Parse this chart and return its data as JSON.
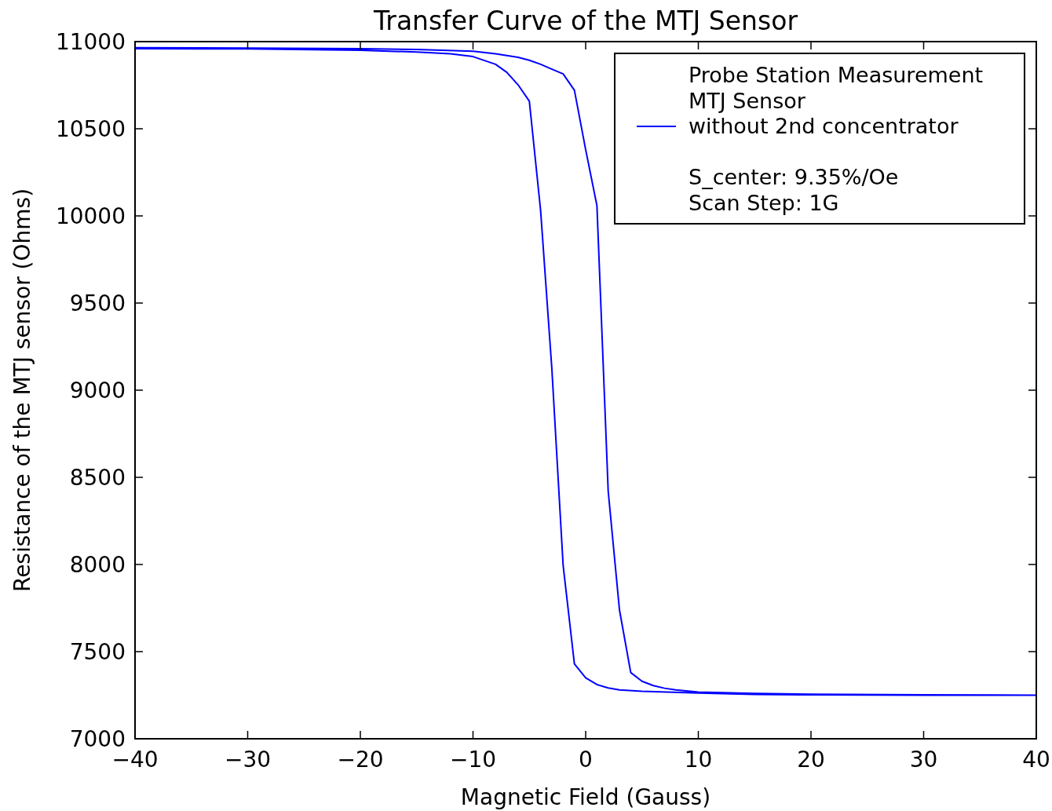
{
  "chart_data": {
    "type": "line",
    "title": "Transfer Curve of the MTJ Sensor",
    "xlabel": "Magnetic Field (Gauss)",
    "ylabel": "Resistance of the MTJ sensor (Ohms)",
    "xlim": [
      -40,
      40
    ],
    "xticks": [
      {
        "value": -40,
        "label": "−40"
      },
      {
        "value": -30,
        "label": "−30"
      },
      {
        "value": -20,
        "label": "−20"
      },
      {
        "value": -10,
        "label": "−10"
      },
      0,
      10,
      20,
      30,
      40
    ],
    "ylim": [
      7000,
      11000
    ],
    "yticks": [
      7000,
      7500,
      8000,
      8500,
      9000,
      9500,
      10000,
      10500,
      11000
    ],
    "annotations": [
      "S_center: 9.35%/Oe",
      "Scan Step: 1G"
    ],
    "grid": false,
    "legend": "top right",
    "line_style": "solid",
    "marker": "none",
    "series": [
      {
        "name": "Probe Station Measurement\nMTJ Sensor\nwithout 2nd concentrator",
        "color": "#0000ff",
        "x": [
          -40,
          -30,
          -20,
          -15,
          -10,
          -8,
          -6,
          -5,
          -4,
          -3,
          -2,
          -1,
          0,
          1,
          2,
          3,
          4,
          5,
          6,
          7,
          8,
          10,
          15,
          20,
          30,
          40,
          40,
          30,
          20,
          15,
          10,
          5,
          3,
          2,
          1,
          0,
          -1,
          -2,
          -3,
          -4,
          -5,
          -6,
          -7,
          -8,
          -10,
          -12,
          -15,
          -20,
          -30,
          -40
        ],
        "values": [
          10965,
          10963,
          10960,
          10955,
          10945,
          10930,
          10910,
          10893,
          10870,
          10842,
          10815,
          10721,
          10380,
          10059,
          8420,
          7740,
          7380,
          7330,
          7305,
          7290,
          7280,
          7268,
          7260,
          7256,
          7252,
          7250,
          7250,
          7250,
          7252,
          7255,
          7262,
          7272,
          7280,
          7292,
          7311,
          7350,
          7430,
          7995,
          9122,
          10032,
          10658,
          10752,
          10824,
          10870,
          10914,
          10930,
          10940,
          10950,
          10958,
          10960
        ]
      }
    ]
  }
}
